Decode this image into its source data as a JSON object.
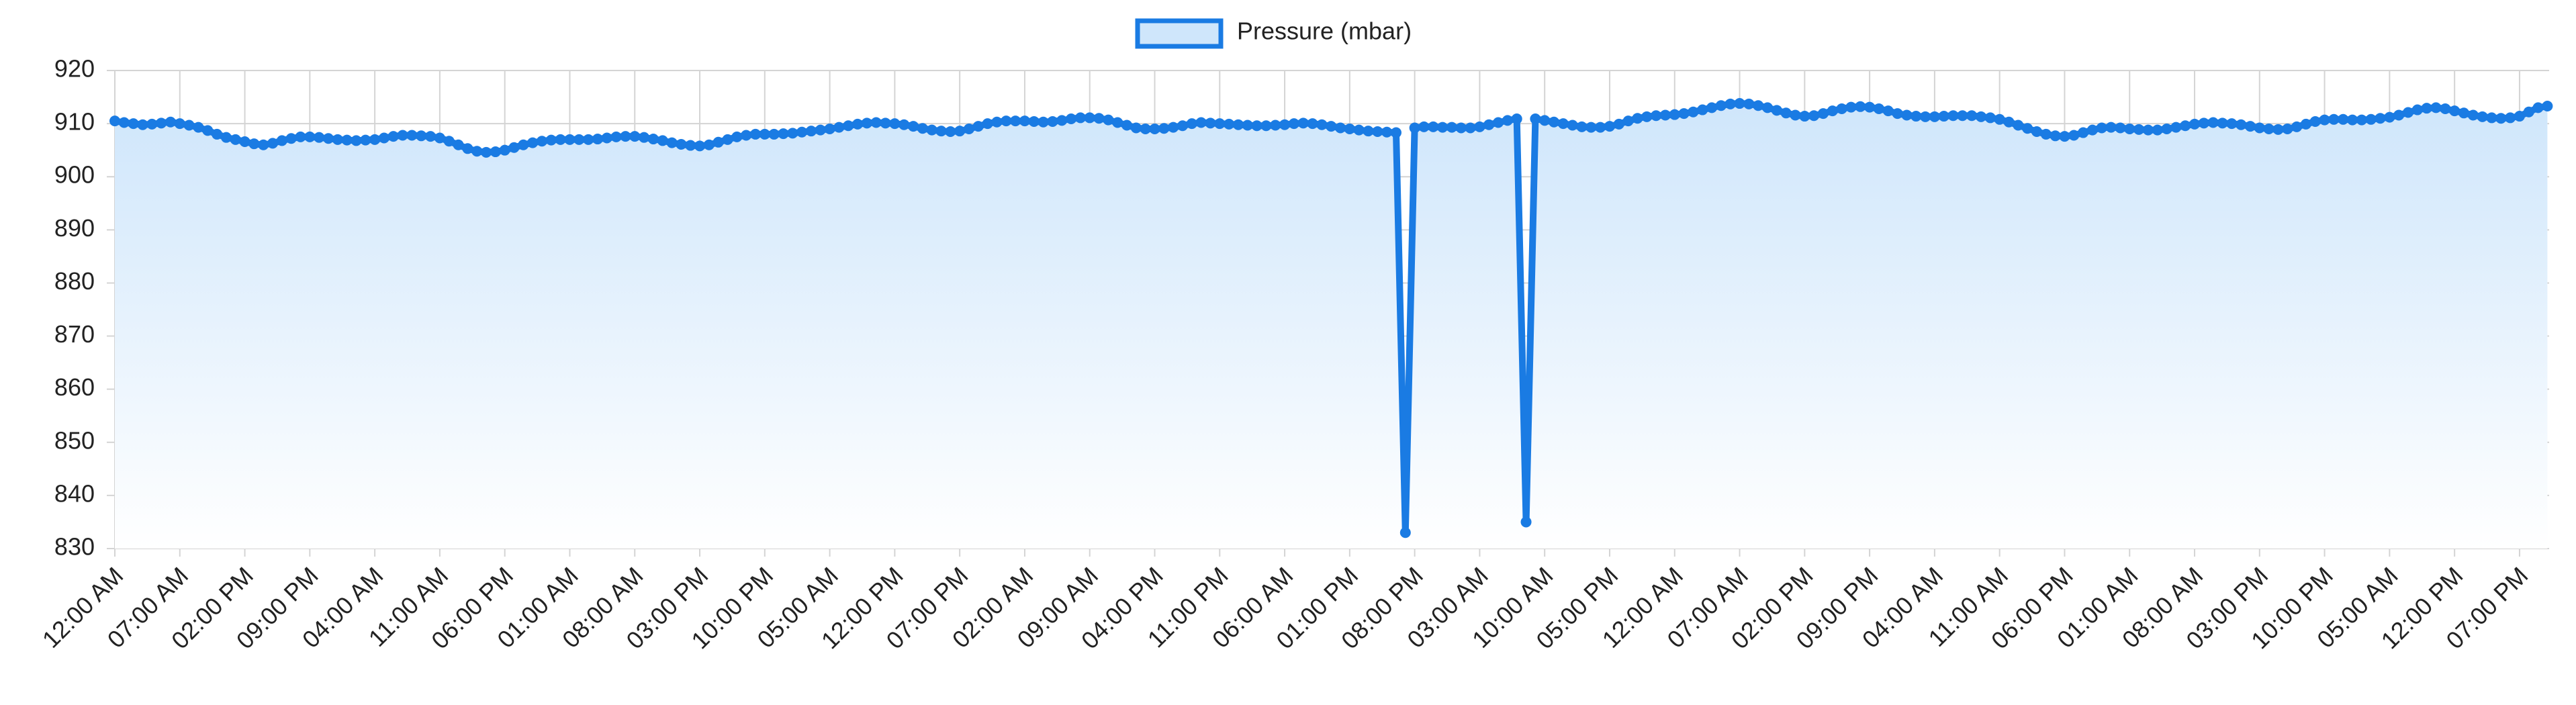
{
  "chart_data": {
    "type": "line",
    "series": [
      {
        "name": "Pressure (mbar)",
        "color": "#1a7be3",
        "values": [
          910.5,
          910.2,
          910,
          909.8,
          909.9,
          910.1,
          910.3,
          910,
          909.7,
          909.3,
          908.7,
          908,
          907.4,
          907,
          906.6,
          906.2,
          906,
          906.3,
          906.8,
          907.2,
          907.5,
          907.5,
          907.4,
          907.2,
          907,
          906.9,
          906.8,
          906.9,
          907,
          907.3,
          907.6,
          907.8,
          907.8,
          907.7,
          907.6,
          907.3,
          906.7,
          906,
          905.3,
          904.8,
          904.6,
          904.7,
          905,
          905.5,
          906,
          906.4,
          906.7,
          906.9,
          907,
          907,
          907,
          907,
          907.1,
          907.3,
          907.5,
          907.6,
          907.6,
          907.4,
          907.1,
          906.8,
          906.4,
          906.1,
          905.9,
          905.8,
          906,
          906.5,
          907,
          907.5,
          907.8,
          908,
          908,
          908,
          908.1,
          908.2,
          908.4,
          908.6,
          908.8,
          909,
          909.3,
          909.6,
          909.9,
          910.1,
          910.2,
          910.1,
          910,
          909.8,
          909.5,
          909.1,
          908.8,
          908.6,
          908.5,
          908.6,
          909,
          909.5,
          910,
          910.3,
          910.5,
          910.5,
          910.5,
          910.4,
          910.3,
          910.4,
          910.6,
          910.9,
          911.1,
          911.1,
          911,
          910.7,
          910.2,
          909.7,
          909.2,
          909,
          909,
          909.1,
          909.3,
          909.6,
          910,
          910.2,
          910.1,
          910,
          909.9,
          909.8,
          909.7,
          909.6,
          909.6,
          909.7,
          909.8,
          910,
          910.1,
          910,
          909.8,
          909.5,
          909.2,
          909,
          908.8,
          908.6,
          908.5,
          908.4,
          908.3,
          833,
          909.2,
          909.4,
          909.4,
          909.3,
          909.3,
          909.2,
          909.2,
          909.4,
          909.8,
          910.2,
          910.6,
          910.9,
          835,
          910.9,
          910.6,
          910.3,
          910,
          909.7,
          909.4,
          909.3,
          909.3,
          909.5,
          909.9,
          910.5,
          911,
          911.3,
          911.5,
          911.6,
          911.7,
          911.9,
          912.2,
          912.6,
          913,
          913.4,
          913.7,
          913.8,
          913.7,
          913.4,
          913,
          912.5,
          912,
          911.6,
          911.4,
          911.5,
          911.9,
          912.4,
          912.8,
          913.1,
          913.2,
          913.1,
          912.8,
          912.4,
          911.9,
          911.6,
          911.4,
          911.3,
          911.3,
          911.4,
          911.5,
          911.5,
          911.5,
          911.3,
          911.1,
          910.8,
          910.3,
          909.7,
          909.1,
          908.5,
          908,
          907.7,
          907.6,
          907.8,
          908.3,
          908.8,
          909.2,
          909.3,
          909.2,
          909,
          908.9,
          908.8,
          908.8,
          909,
          909.3,
          909.6,
          909.9,
          910.1,
          910.2,
          910.1,
          910,
          909.8,
          909.5,
          909.2,
          909,
          908.9,
          909,
          909.4,
          909.9,
          910.4,
          910.7,
          910.8,
          910.8,
          910.7,
          910.7,
          910.8,
          911,
          911.2,
          911.6,
          912.1,
          912.6,
          912.9,
          913,
          912.8,
          912.4,
          912,
          911.6,
          911.3,
          911.1,
          911,
          911.1,
          911.4,
          912.2,
          913,
          913.3
        ]
      }
    ],
    "categories": [
      "12:00 AM",
      null,
      null,
      null,
      null,
      null,
      null,
      "07:00 AM",
      null,
      null,
      null,
      null,
      null,
      null,
      "02:00 PM",
      null,
      null,
      null,
      null,
      null,
      null,
      "09:00 PM",
      null,
      null,
      null,
      null,
      null,
      null,
      "04:00 AM",
      null,
      null,
      null,
      null,
      null,
      null,
      "11:00 AM",
      null,
      null,
      null,
      null,
      null,
      null,
      "06:00 PM",
      null,
      null,
      null,
      null,
      null,
      null,
      "01:00 AM",
      null,
      null,
      null,
      null,
      null,
      null,
      "08:00 AM",
      null,
      null,
      null,
      null,
      null,
      null,
      "03:00 PM",
      null,
      null,
      null,
      null,
      null,
      null,
      "10:00 PM",
      null,
      null,
      null,
      null,
      null,
      null,
      "05:00 AM",
      null,
      null,
      null,
      null,
      null,
      null,
      "12:00 PM",
      null,
      null,
      null,
      null,
      null,
      null,
      "07:00 PM",
      null,
      null,
      null,
      null,
      null,
      null,
      "02:00 AM",
      null,
      null,
      null,
      null,
      null,
      null,
      "09:00 AM",
      null,
      null,
      null,
      null,
      null,
      null,
      "04:00 PM",
      null,
      null,
      null,
      null,
      null,
      null,
      "11:00 PM",
      null,
      null,
      null,
      null,
      null,
      null,
      "06:00 AM",
      null,
      null,
      null,
      null,
      null,
      null,
      "01:00 PM",
      null,
      null,
      null,
      null,
      null,
      null,
      "08:00 PM",
      null,
      null,
      null,
      null,
      null,
      null,
      "03:00 AM",
      null,
      null,
      null,
      null,
      null,
      null,
      "10:00 AM",
      null,
      null,
      null,
      null,
      null,
      null,
      "05:00 PM",
      null,
      null,
      null,
      null,
      null,
      null,
      "12:00 AM",
      null,
      null,
      null,
      null,
      null,
      null,
      "07:00 AM",
      null,
      null,
      null,
      null,
      null,
      null,
      "02:00 PM",
      null,
      null,
      null,
      null,
      null,
      null,
      "09:00 PM",
      null,
      null,
      null,
      null,
      null,
      null,
      "04:00 AM",
      null,
      null,
      null,
      null,
      null,
      null,
      "11:00 AM",
      null,
      null,
      null,
      null,
      null,
      null,
      "06:00 PM",
      null,
      null,
      null,
      null,
      null,
      null,
      "01:00 AM",
      null,
      null,
      null,
      null,
      null,
      null,
      "08:00 AM",
      null,
      null,
      null,
      null,
      null,
      null,
      "03:00 PM",
      null,
      null,
      null,
      null,
      null,
      null,
      "10:00 PM",
      null,
      null,
      null,
      null,
      null,
      null,
      "05:00 AM",
      null,
      null,
      null,
      null,
      null,
      null,
      "12:00 PM",
      null,
      null,
      null,
      null,
      null,
      null,
      "07:00 PM",
      null,
      null,
      null
    ],
    "ylim": [
      830,
      920
    ],
    "yticks": [
      830,
      840,
      850,
      860,
      870,
      880,
      890,
      900,
      910,
      920
    ],
    "grid": true,
    "legend": "top"
  }
}
